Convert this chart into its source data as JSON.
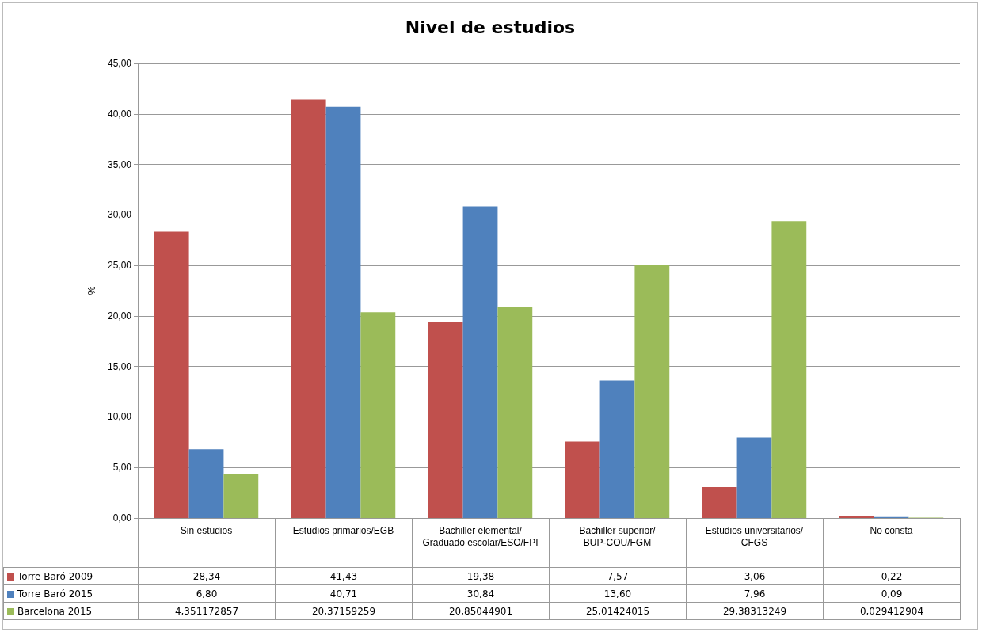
{
  "chart_data": {
    "type": "bar",
    "title": "Nivel de estudios",
    "ylabel": "%",
    "categories": [
      "Sin estudios",
      "Estudios primarios/EGB",
      "Bachiller elemental/Graduado escolar/ESO/FPI",
      "Bachiller superior/BUP-COU/FGM",
      "Estudios universitarios/CFGS",
      "No consta"
    ],
    "series": [
      {
        "name": "Torre Baró 2009",
        "color": "#c0504d",
        "values": [
          28.34,
          41.43,
          19.38,
          7.57,
          3.06,
          0.22
        ],
        "value_labels": [
          "28,34",
          "41,43",
          "19,38",
          "7,57",
          "3,06",
          "0,22"
        ]
      },
      {
        "name": "Torre Baró 2015",
        "color": "#4f81bd",
        "values": [
          6.8,
          40.71,
          30.84,
          13.6,
          7.96,
          0.09
        ],
        "value_labels": [
          "6,80",
          "40,71",
          "30,84",
          "13,60",
          "7,96",
          "0,09"
        ]
      },
      {
        "name": "Barcelona 2015",
        "color": "#9bbb59",
        "values": [
          4.351172857,
          20.37159259,
          20.85044901,
          25.01424015,
          29.38313249,
          0.029412904
        ],
        "value_labels": [
          "4,351172857",
          "20,37159259",
          "20,85044901",
          "25,01424015",
          "29,38313249",
          "0,029412904"
        ]
      }
    ],
    "ylim": [
      0,
      45
    ],
    "yticks": [
      {
        "value": 0,
        "label": "0,00"
      },
      {
        "value": 5,
        "label": "5,00"
      },
      {
        "value": 10,
        "label": "10,00"
      },
      {
        "value": 15,
        "label": "15,00"
      },
      {
        "value": 20,
        "label": "20,00"
      },
      {
        "value": 25,
        "label": "25,00"
      },
      {
        "value": 30,
        "label": "30,00"
      },
      {
        "value": 35,
        "label": "35,00"
      },
      {
        "value": 40,
        "label": "40,00"
      },
      {
        "value": 45,
        "label": "45,00"
      }
    ],
    "grid": "y",
    "legend": "bottom left"
  }
}
